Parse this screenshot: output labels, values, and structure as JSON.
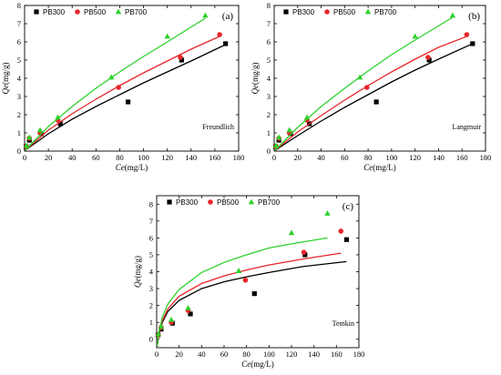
{
  "chart_data": [
    {
      "type": "scatter",
      "panel_label": "(a)",
      "model_label": "Freundlich",
      "xlabel_italic": "Ce",
      "xlabel_unit": "(mg/L)",
      "ylabel_italic": "Qe",
      "ylabel_unit": "(mg/g)",
      "xlim": [
        0,
        180
      ],
      "ylim": [
        0,
        8
      ],
      "xticks": [
        0,
        20,
        40,
        60,
        80,
        100,
        120,
        140,
        160,
        180
      ],
      "yticks": [
        0,
        1,
        2,
        3,
        4,
        5,
        6,
        7,
        8
      ],
      "legend": "top-left",
      "series": [
        {
          "name": "PB300",
          "color": "#000000",
          "marker": "square",
          "points": [
            [
              1.2,
              0.25
            ],
            [
              4,
              0.6
            ],
            [
              14,
              0.95
            ],
            [
              30,
              1.5
            ],
            [
              87,
              2.7
            ],
            [
              132,
              5.0
            ],
            [
              169,
              5.9
            ]
          ],
          "fit": [
            [
              0.5,
              0.05
            ],
            [
              20,
              0.95
            ],
            [
              40,
              1.75
            ],
            [
              60,
              2.45
            ],
            [
              80,
              3.1
            ],
            [
              100,
              3.75
            ],
            [
              120,
              4.35
            ],
            [
              140,
              4.95
            ],
            [
              169,
              5.85
            ]
          ]
        },
        {
          "name": "PB500",
          "color": "#e8262b",
          "marker": "circle",
          "points": [
            [
              1.5,
              0.25
            ],
            [
              4,
              0.7
            ],
            [
              13,
              1.0
            ],
            [
              28,
              1.7
            ],
            [
              79,
              3.5
            ],
            [
              131,
              5.15
            ],
            [
              164,
              6.4
            ]
          ],
          "fit": [
            [
              0.5,
              0.05
            ],
            [
              20,
              1.15
            ],
            [
              40,
              2.05
            ],
            [
              60,
              2.85
            ],
            [
              80,
              3.6
            ],
            [
              100,
              4.3
            ],
            [
              120,
              4.95
            ],
            [
              140,
              5.6
            ],
            [
              164,
              6.3
            ]
          ]
        },
        {
          "name": "PB700",
          "color": "#2bd12b",
          "marker": "triangle",
          "points": [
            [
              1.5,
              0.3
            ],
            [
              4,
              0.75
            ],
            [
              13,
              1.15
            ],
            [
              28,
              1.85
            ],
            [
              73,
              4.05
            ],
            [
              120,
              6.3
            ],
            [
              152,
              7.45
            ]
          ],
          "fit": [
            [
              0.5,
              0.05
            ],
            [
              20,
              1.35
            ],
            [
              40,
              2.45
            ],
            [
              60,
              3.45
            ],
            [
              80,
              4.35
            ],
            [
              100,
              5.2
            ],
            [
              120,
              6.0
            ],
            [
              152,
              7.3
            ]
          ]
        }
      ]
    },
    {
      "type": "scatter",
      "panel_label": "(b)",
      "model_label": "Langmuir",
      "xlabel_italic": "Ce",
      "xlabel_unit": "(mg/L)",
      "ylabel_italic": "Qe",
      "ylabel_unit": "(mg/g)",
      "xlim": [
        0,
        180
      ],
      "ylim": [
        0,
        8
      ],
      "xticks": [
        0,
        20,
        40,
        60,
        80,
        100,
        120,
        140,
        160,
        180
      ],
      "yticks": [
        0,
        1,
        2,
        3,
        4,
        5,
        6,
        7,
        8
      ],
      "legend": "top-left",
      "series": [
        {
          "name": "PB300",
          "color": "#000000",
          "marker": "square",
          "points": [
            [
              1.2,
              0.25
            ],
            [
              4,
              0.6
            ],
            [
              14,
              0.95
            ],
            [
              30,
              1.5
            ],
            [
              87,
              2.7
            ],
            [
              132,
              5.0
            ],
            [
              169,
              5.9
            ]
          ],
          "fit": [
            [
              0.5,
              0.03
            ],
            [
              20,
              0.85
            ],
            [
              40,
              1.65
            ],
            [
              60,
              2.4
            ],
            [
              80,
              3.1
            ],
            [
              100,
              3.8
            ],
            [
              120,
              4.45
            ],
            [
              140,
              5.05
            ],
            [
              169,
              5.9
            ]
          ]
        },
        {
          "name": "PB500",
          "color": "#e8262b",
          "marker": "circle",
          "points": [
            [
              1.5,
              0.25
            ],
            [
              4,
              0.7
            ],
            [
              13,
              1.0
            ],
            [
              28,
              1.7
            ],
            [
              79,
              3.5
            ],
            [
              131,
              5.15
            ],
            [
              164,
              6.4
            ]
          ],
          "fit": [
            [
              0.5,
              0.03
            ],
            [
              20,
              1.05
            ],
            [
              40,
              1.95
            ],
            [
              60,
              2.8
            ],
            [
              80,
              3.6
            ],
            [
              100,
              4.35
            ],
            [
              120,
              5.05
            ],
            [
              140,
              5.7
            ],
            [
              164,
              6.3
            ]
          ]
        },
        {
          "name": "PB700",
          "color": "#2bd12b",
          "marker": "triangle",
          "points": [
            [
              1.5,
              0.3
            ],
            [
              4,
              0.75
            ],
            [
              13,
              1.15
            ],
            [
              28,
              1.85
            ],
            [
              73,
              4.05
            ],
            [
              120,
              6.3
            ],
            [
              152,
              7.45
            ]
          ],
          "fit": [
            [
              0.5,
              0.03
            ],
            [
              20,
              1.3
            ],
            [
              40,
              2.45
            ],
            [
              60,
              3.45
            ],
            [
              80,
              4.4
            ],
            [
              100,
              5.3
            ],
            [
              120,
              6.1
            ],
            [
              152,
              7.35
            ]
          ]
        }
      ]
    },
    {
      "type": "scatter",
      "panel_label": "(c)",
      "model_label": "Temkin",
      "xlabel_italic": "Ce",
      "xlabel_unit": "(mg/L)",
      "ylabel_italic": "Qe",
      "ylabel_unit": "(mg/g)",
      "xlim": [
        0,
        180
      ],
      "ylim": [
        -0.5,
        8.5
      ],
      "xticks": [
        0,
        20,
        40,
        60,
        80,
        100,
        120,
        140,
        160,
        180
      ],
      "yticks": [
        0,
        1,
        2,
        3,
        4,
        5,
        6,
        7,
        8
      ],
      "legend": "top-left",
      "series": [
        {
          "name": "PB300",
          "color": "#000000",
          "marker": "square",
          "points": [
            [
              1.2,
              0.25
            ],
            [
              4,
              0.6
            ],
            [
              14,
              0.95
            ],
            [
              30,
              1.5
            ],
            [
              87,
              2.7
            ],
            [
              132,
              5.0
            ],
            [
              169,
              5.9
            ]
          ],
          "fit": [
            [
              0.5,
              -0.4
            ],
            [
              2,
              0.3
            ],
            [
              5,
              1.0
            ],
            [
              10,
              1.65
            ],
            [
              20,
              2.3
            ],
            [
              40,
              3.0
            ],
            [
              60,
              3.4
            ],
            [
              80,
              3.7
            ],
            [
              100,
              3.95
            ],
            [
              130,
              4.3
            ],
            [
              169,
              4.6
            ]
          ]
        },
        {
          "name": "PB500",
          "color": "#e8262b",
          "marker": "circle",
          "points": [
            [
              1.5,
              0.25
            ],
            [
              4,
              0.7
            ],
            [
              13,
              1.0
            ],
            [
              28,
              1.7
            ],
            [
              79,
              3.5
            ],
            [
              131,
              5.15
            ],
            [
              164,
              6.4
            ]
          ],
          "fit": [
            [
              0.5,
              -0.4
            ],
            [
              2,
              0.35
            ],
            [
              5,
              1.1
            ],
            [
              10,
              1.8
            ],
            [
              20,
              2.55
            ],
            [
              40,
              3.3
            ],
            [
              60,
              3.75
            ],
            [
              80,
              4.1
            ],
            [
              100,
              4.4
            ],
            [
              130,
              4.75
            ],
            [
              164,
              5.1
            ]
          ]
        },
        {
          "name": "PB700",
          "color": "#2bd12b",
          "marker": "triangle",
          "points": [
            [
              1.5,
              0.3
            ],
            [
              4,
              0.75
            ],
            [
              13,
              1.15
            ],
            [
              28,
              1.85
            ],
            [
              73,
              4.05
            ],
            [
              120,
              6.3
            ],
            [
              152,
              7.45
            ]
          ],
          "fit": [
            [
              0.5,
              -0.4
            ],
            [
              2,
              0.45
            ],
            [
              5,
              1.3
            ],
            [
              10,
              2.1
            ],
            [
              20,
              2.95
            ],
            [
              40,
              3.95
            ],
            [
              60,
              4.55
            ],
            [
              80,
              5.0
            ],
            [
              100,
              5.4
            ],
            [
              120,
              5.65
            ],
            [
              152,
              6.0
            ]
          ]
        }
      ]
    }
  ]
}
